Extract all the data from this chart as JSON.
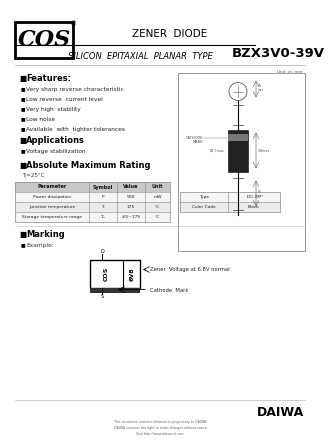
{
  "bg_color": "#ffffff",
  "title_zener": "ZENER  DIODE",
  "title_silicon": "SILICON  EPITAXIAL  PLANAR  TYPE",
  "part_number": "BZX3V0-39V",
  "cos_logo": "COS",
  "unit_label": "Unit: in: mm",
  "features_title": "Features:",
  "features": [
    "Very sharp reverse characteristic",
    "Low reverse  current level",
    "Very high  stability",
    "Low noise",
    "Available  with  tighter tolerances"
  ],
  "applications_title": "Applications",
  "applications": [
    "Voltage stabilization"
  ],
  "abs_max_title": "Absolute Maximum Rating",
  "temp_cond": "Tⱼ=25°C",
  "table_headers": [
    "Parameter",
    "Symbol",
    "Value",
    "Unit"
  ],
  "table_rows": [
    [
      "Power dissipation",
      "P",
      "500",
      "mW"
    ],
    [
      "Junction temperature",
      "Tⱼ",
      "175",
      "°C"
    ],
    [
      "Storage temperature range",
      "Tₛⱼ",
      "-65~175",
      "°C"
    ]
  ],
  "package_type": "DO-35",
  "color_code": "Black",
  "marking_title": "Marking",
  "example_label": "Example:",
  "marking_note1": "Zener  Voltage at 6.8V normal",
  "marking_note2": "Cathode  Mark",
  "marking_text_cos": "COS",
  "marking_text_6v8": "6V8",
  "daiwa_text": "DAIWA",
  "footer_line1": "This document contains information proprietary to DAIWA",
  "footer_line2": "DAIWA reserves the right to make changes without notice",
  "footer_line3": "Visit http://www.daiwa-el.com"
}
